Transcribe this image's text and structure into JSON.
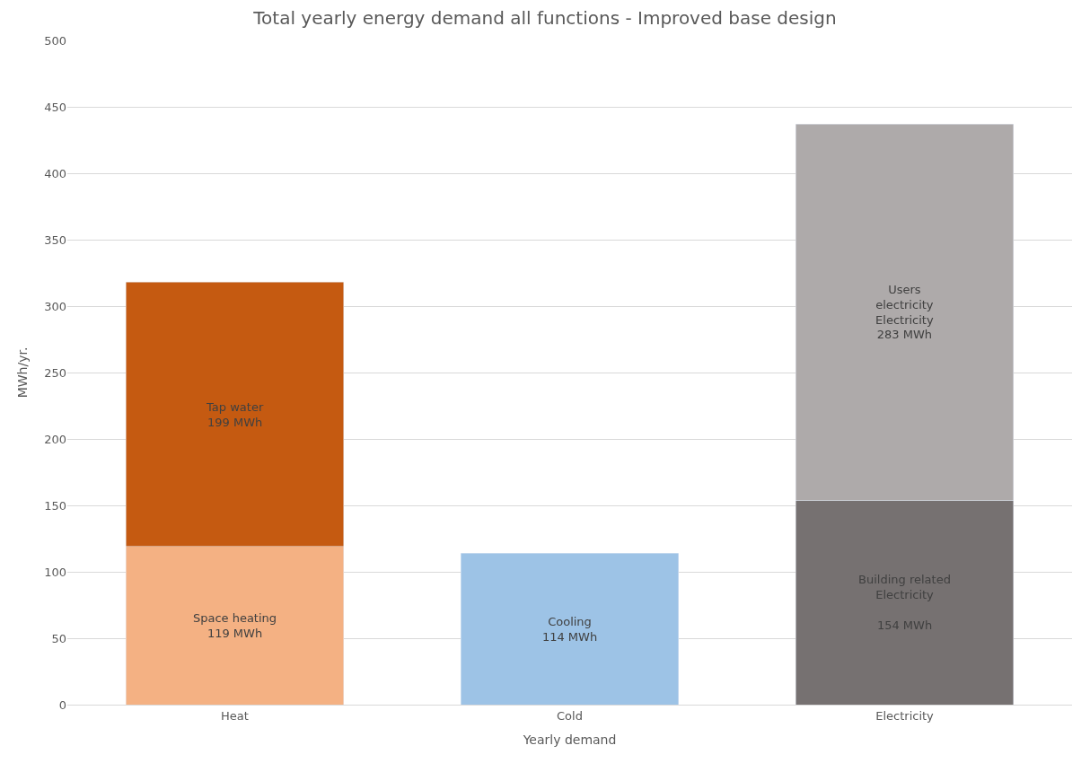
{
  "chart_data": {
    "type": "bar",
    "title": "Total yearly energy demand all functions - Improved base design",
    "xlabel": "Yearly demand",
    "ylabel": "MWh/yr.",
    "stacked": true,
    "categories": [
      "Heat",
      "Cold",
      "Electricity"
    ],
    "series": [
      {
        "colors": [
          "#f4b183",
          "#9dc3e6",
          "#767171"
        ],
        "values": [
          119,
          114,
          154
        ],
        "value_labels": [
          "Space heating\n119 MWh",
          "Cooling\n114 MWh",
          "Building related\nElectricity\n\n154 MWh"
        ]
      },
      {
        "colors": [
          "#c55a11",
          null,
          "#aeaaaa"
        ],
        "values": [
          199,
          null,
          283
        ],
        "value_labels": [
          "Tap water\n199 MWh",
          null,
          "Users\nelectricity\nElectricity\n283 MWh"
        ]
      }
    ],
    "ylim": [
      0,
      500
    ],
    "yticks": [
      0,
      50,
      100,
      150,
      200,
      250,
      300,
      350,
      400,
      450,
      500
    ],
    "grid": "y"
  }
}
